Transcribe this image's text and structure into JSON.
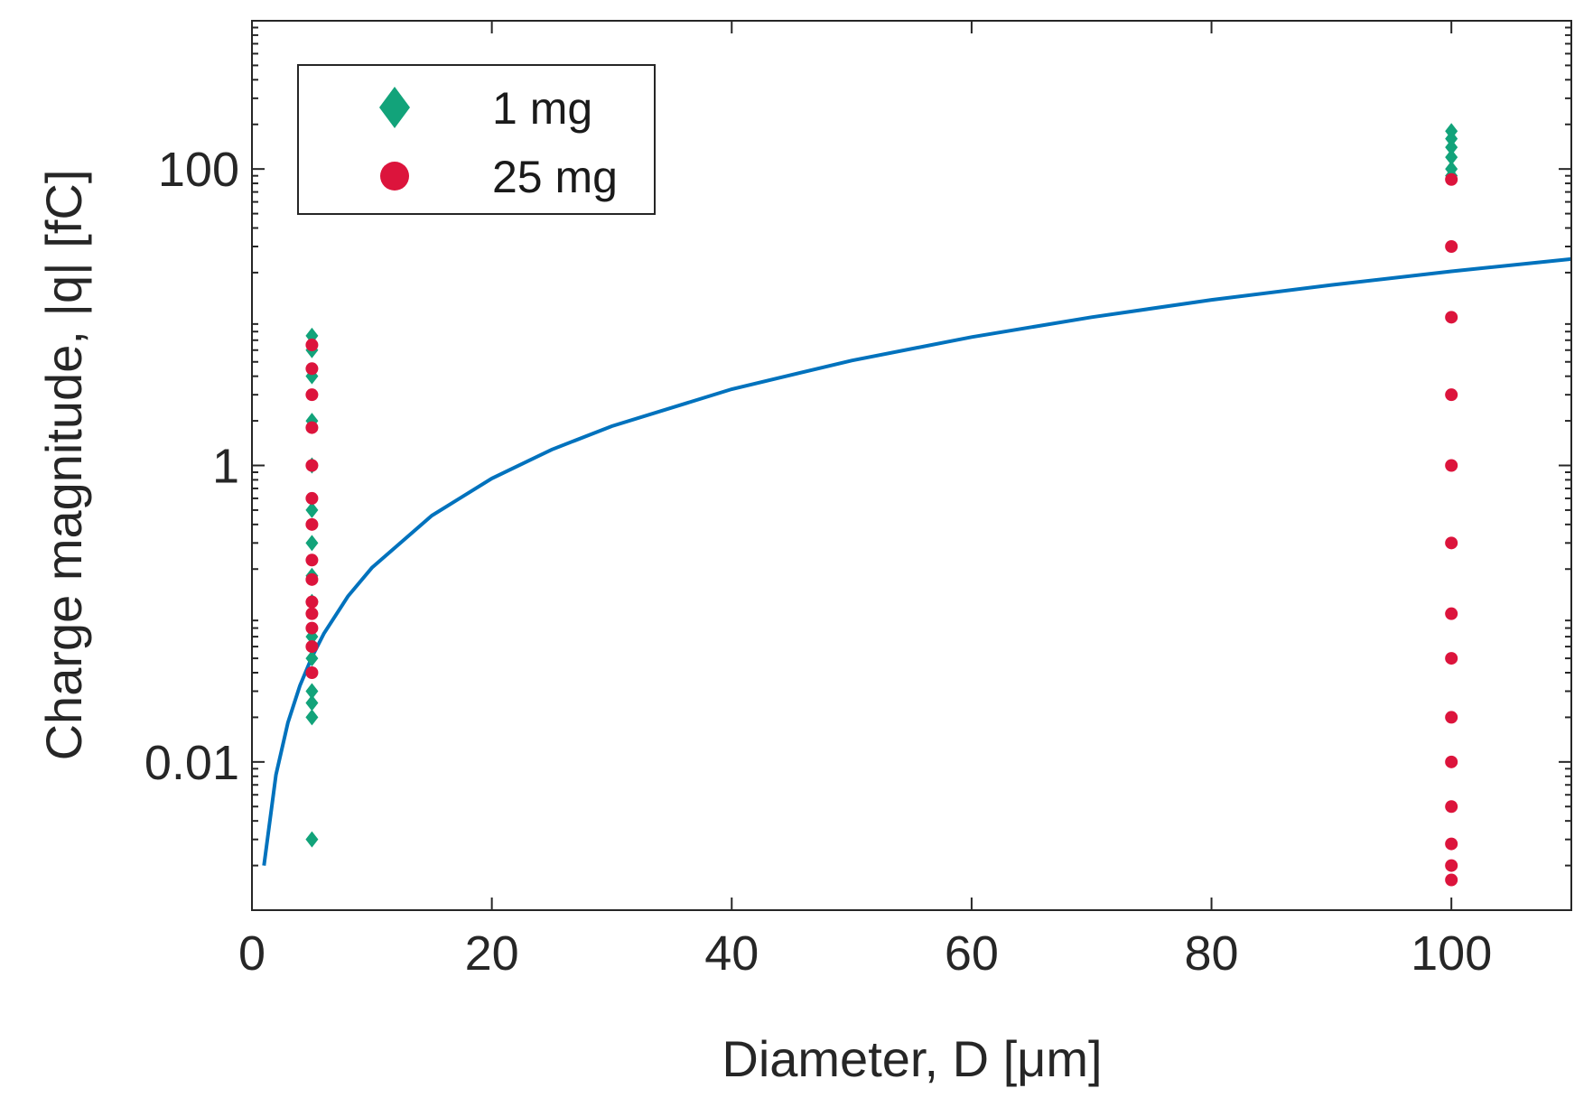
{
  "chart_data": {
    "type": "scatter",
    "xlabel": "Diameter, D [μm]",
    "ylabel": "Charge magnitude, |q| [fC]",
    "xlim": [
      0,
      110
    ],
    "ylim": [
      0.001,
      1000
    ],
    "yscale": "log",
    "x_ticks": [
      0,
      20,
      40,
      60,
      80,
      100
    ],
    "x_tick_labels": [
      "0",
      "20",
      "40",
      "60",
      "80",
      "100"
    ],
    "y_ticks": [
      0.01,
      1,
      100
    ],
    "y_tick_labels": [
      "0.01",
      "1",
      "100"
    ],
    "grid": false,
    "legend_position": "top-left",
    "colors": {
      "curve": "#0072BD",
      "series_1mg": "#12A37A",
      "series_25mg": "#DC143C"
    },
    "curve": {
      "x": [
        1,
        2,
        3,
        4,
        5,
        6,
        8,
        10,
        15,
        20,
        25,
        30,
        40,
        50,
        60,
        70,
        80,
        90,
        100,
        110
      ],
      "y": [
        0.002,
        0.0082,
        0.0184,
        0.0327,
        0.051,
        0.0735,
        0.131,
        0.204,
        0.459,
        0.817,
        1.28,
        1.84,
        3.27,
        5.1,
        7.35,
        10.0,
        13.1,
        16.5,
        20.4,
        24.7
      ]
    },
    "series": [
      {
        "name": "1 mg",
        "marker": "diamond",
        "x": [
          5,
          5,
          5,
          5,
          5,
          5,
          5,
          5,
          5,
          5,
          5,
          5,
          5,
          5,
          5,
          100,
          100,
          100,
          100,
          100,
          100
        ],
        "y": [
          7.5,
          6.0,
          4.0,
          2.0,
          1.0,
          0.5,
          0.3,
          0.18,
          0.12,
          0.07,
          0.05,
          0.03,
          0.025,
          0.02,
          0.003,
          180,
          160,
          140,
          120,
          100,
          90
        ]
      },
      {
        "name": "25 mg",
        "marker": "circle",
        "x": [
          5,
          5,
          5,
          5,
          5,
          5,
          5,
          5,
          5,
          5,
          5,
          5,
          5,
          5,
          100,
          100,
          100,
          100,
          100,
          100,
          100,
          100,
          100,
          100,
          100,
          100,
          100,
          100
        ],
        "y": [
          6.5,
          4.5,
          3.0,
          1.8,
          1.0,
          0.6,
          0.4,
          0.23,
          0.17,
          0.12,
          0.1,
          0.08,
          0.06,
          0.04,
          85,
          30,
          10,
          3,
          1,
          0.3,
          0.1,
          0.05,
          0.02,
          0.01,
          0.005,
          0.0028,
          0.002,
          0.0016
        ]
      }
    ]
  }
}
